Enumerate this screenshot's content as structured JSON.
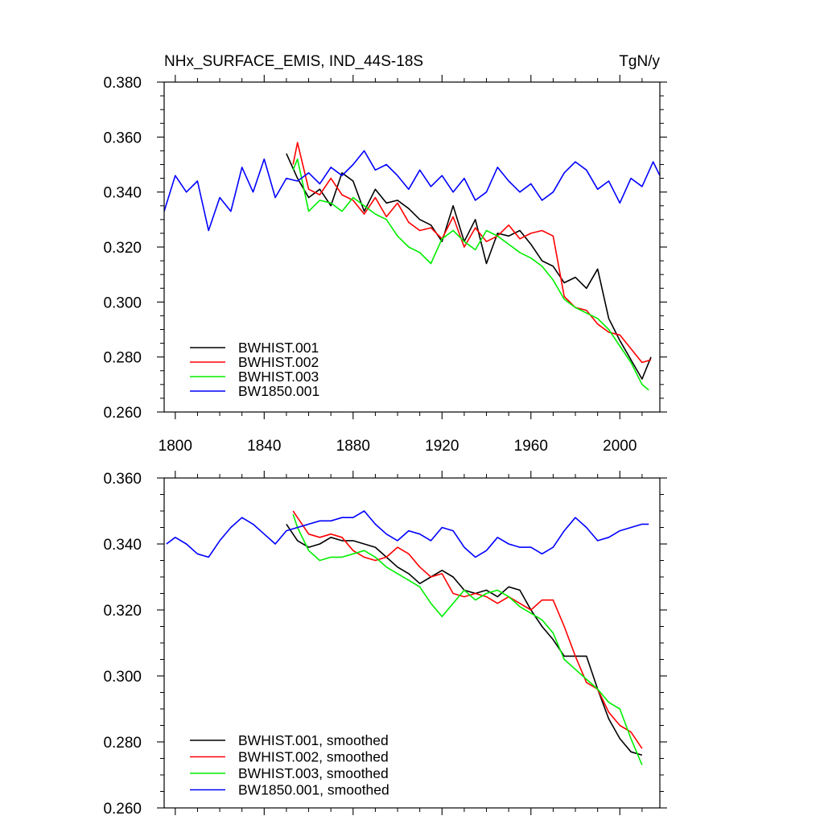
{
  "chart_data": [
    {
      "type": "line",
      "title": "NHx_SURFACE_EMIS, IND_44S-18S",
      "units": "TgN/y",
      "xlim": [
        1795,
        2018
      ],
      "ylim": [
        0.26,
        0.38
      ],
      "xticks": [
        1800,
        1840,
        1880,
        1920,
        1960,
        2000
      ],
      "yticks": [
        0.26,
        0.28,
        0.3,
        0.32,
        0.34,
        0.36,
        0.38
      ],
      "ytick_labels": [
        "0.260",
        "0.280",
        "0.300",
        "0.320",
        "0.340",
        "0.360",
        "0.380"
      ],
      "legend_position": "bottom-left",
      "series": [
        {
          "name": "BWHIST.001",
          "color": "#000000",
          "x": [
            1850,
            1855,
            1860,
            1865,
            1870,
            1875,
            1880,
            1885,
            1890,
            1895,
            1900,
            1905,
            1910,
            1915,
            1920,
            1925,
            1930,
            1935,
            1940,
            1945,
            1950,
            1955,
            1960,
            1965,
            1970,
            1975,
            1980,
            1985,
            1990,
            1995,
            2000,
            2005,
            2010,
            2014
          ],
          "y": [
            0.354,
            0.345,
            0.338,
            0.341,
            0.335,
            0.347,
            0.344,
            0.333,
            0.341,
            0.336,
            0.337,
            0.334,
            0.33,
            0.328,
            0.322,
            0.335,
            0.322,
            0.33,
            0.314,
            0.325,
            0.324,
            0.326,
            0.321,
            0.315,
            0.313,
            0.307,
            0.309,
            0.305,
            0.312,
            0.294,
            0.286,
            0.279,
            0.272,
            0.28
          ]
        },
        {
          "name": "BWHIST.002",
          "color": "#ff0000",
          "x": [
            1853,
            1855,
            1860,
            1865,
            1870,
            1875,
            1880,
            1885,
            1890,
            1895,
            1900,
            1905,
            1910,
            1915,
            1920,
            1925,
            1930,
            1935,
            1940,
            1945,
            1950,
            1955,
            1960,
            1965,
            1970,
            1975,
            1980,
            1985,
            1990,
            1995,
            2000,
            2005,
            2010,
            2014
          ],
          "y": [
            0.35,
            0.358,
            0.341,
            0.339,
            0.345,
            0.339,
            0.337,
            0.332,
            0.338,
            0.331,
            0.336,
            0.329,
            0.326,
            0.327,
            0.323,
            0.331,
            0.32,
            0.327,
            0.322,
            0.324,
            0.328,
            0.323,
            0.325,
            0.326,
            0.324,
            0.302,
            0.298,
            0.297,
            0.292,
            0.289,
            0.288,
            0.283,
            0.278,
            0.279
          ]
        },
        {
          "name": "BWHIST.003",
          "color": "#00ee00",
          "x": [
            1853,
            1855,
            1860,
            1865,
            1870,
            1875,
            1880,
            1885,
            1890,
            1895,
            1900,
            1905,
            1910,
            1915,
            1920,
            1925,
            1930,
            1935,
            1940,
            1945,
            1950,
            1955,
            1960,
            1965,
            1970,
            1975,
            1980,
            1985,
            1990,
            1995,
            2000,
            2005,
            2010,
            2013
          ],
          "y": [
            0.348,
            0.352,
            0.333,
            0.337,
            0.336,
            0.333,
            0.338,
            0.335,
            0.332,
            0.33,
            0.324,
            0.32,
            0.318,
            0.314,
            0.323,
            0.326,
            0.322,
            0.319,
            0.326,
            0.324,
            0.321,
            0.318,
            0.316,
            0.313,
            0.308,
            0.301,
            0.298,
            0.296,
            0.294,
            0.29,
            0.284,
            0.278,
            0.27,
            0.268
          ]
        },
        {
          "name": "BW1850.001",
          "color": "#0000ff",
          "x": [
            1795,
            1800,
            1805,
            1810,
            1815,
            1820,
            1825,
            1830,
            1835,
            1840,
            1845,
            1850,
            1855,
            1860,
            1865,
            1870,
            1875,
            1880,
            1885,
            1890,
            1895,
            1900,
            1905,
            1910,
            1915,
            1920,
            1925,
            1930,
            1935,
            1940,
            1945,
            1950,
            1955,
            1960,
            1965,
            1970,
            1975,
            1980,
            1985,
            1990,
            1995,
            2000,
            2005,
            2010,
            2015,
            2018
          ],
          "y": [
            0.333,
            0.346,
            0.34,
            0.344,
            0.326,
            0.338,
            0.333,
            0.349,
            0.34,
            0.352,
            0.338,
            0.345,
            0.344,
            0.347,
            0.343,
            0.349,
            0.346,
            0.35,
            0.355,
            0.348,
            0.35,
            0.346,
            0.341,
            0.348,
            0.342,
            0.346,
            0.34,
            0.345,
            0.337,
            0.34,
            0.349,
            0.344,
            0.34,
            0.343,
            0.337,
            0.34,
            0.347,
            0.351,
            0.348,
            0.341,
            0.344,
            0.336,
            0.345,
            0.342,
            0.351,
            0.346
          ]
        }
      ]
    },
    {
      "type": "line",
      "xlim": [
        1795,
        2018
      ],
      "ylim": [
        0.26,
        0.36
      ],
      "xticks": [
        1800,
        1840,
        1880,
        1920,
        1960,
        2000
      ],
      "yticks": [
        0.26,
        0.28,
        0.3,
        0.32,
        0.34,
        0.36
      ],
      "ytick_labels": [
        "0.260",
        "0.280",
        "0.300",
        "0.320",
        "0.340",
        "0.360"
      ],
      "legend_position": "bottom-left",
      "series": [
        {
          "name": "BWHIST.001, smoothed",
          "color": "#000000",
          "x": [
            1850,
            1855,
            1860,
            1865,
            1870,
            1875,
            1880,
            1885,
            1890,
            1895,
            1900,
            1905,
            1910,
            1915,
            1920,
            1925,
            1930,
            1935,
            1940,
            1945,
            1950,
            1955,
            1960,
            1965,
            1970,
            1975,
            1980,
            1985,
            1990,
            1995,
            2000,
            2005,
            2010
          ],
          "y": [
            0.346,
            0.341,
            0.339,
            0.34,
            0.342,
            0.341,
            0.341,
            0.34,
            0.339,
            0.336,
            0.333,
            0.331,
            0.328,
            0.33,
            0.332,
            0.33,
            0.326,
            0.325,
            0.326,
            0.324,
            0.327,
            0.326,
            0.32,
            0.315,
            0.311,
            0.306,
            0.306,
            0.306,
            0.296,
            0.287,
            0.281,
            0.277,
            0.276
          ]
        },
        {
          "name": "BWHIST.002, smoothed",
          "color": "#ff0000",
          "x": [
            1853,
            1855,
            1860,
            1865,
            1870,
            1875,
            1880,
            1885,
            1890,
            1895,
            1900,
            1905,
            1910,
            1915,
            1920,
            1925,
            1930,
            1935,
            1940,
            1945,
            1950,
            1955,
            1960,
            1965,
            1970,
            1975,
            1980,
            1985,
            1990,
            1995,
            2000,
            2005,
            2010
          ],
          "y": [
            0.35,
            0.348,
            0.343,
            0.342,
            0.343,
            0.342,
            0.338,
            0.336,
            0.335,
            0.336,
            0.339,
            0.337,
            0.333,
            0.33,
            0.331,
            0.325,
            0.324,
            0.325,
            0.324,
            0.322,
            0.324,
            0.322,
            0.32,
            0.323,
            0.323,
            0.315,
            0.306,
            0.298,
            0.296,
            0.289,
            0.285,
            0.283,
            0.278
          ]
        },
        {
          "name": "BWHIST.003, smoothed",
          "color": "#00ee00",
          "x": [
            1853,
            1855,
            1860,
            1865,
            1870,
            1875,
            1880,
            1885,
            1890,
            1895,
            1900,
            1905,
            1910,
            1915,
            1920,
            1925,
            1930,
            1935,
            1940,
            1945,
            1950,
            1955,
            1960,
            1965,
            1970,
            1975,
            1980,
            1985,
            1990,
            1995,
            2000,
            2005,
            2010
          ],
          "y": [
            0.349,
            0.345,
            0.338,
            0.335,
            0.336,
            0.336,
            0.337,
            0.338,
            0.336,
            0.333,
            0.331,
            0.329,
            0.327,
            0.322,
            0.318,
            0.322,
            0.326,
            0.323,
            0.325,
            0.326,
            0.324,
            0.321,
            0.319,
            0.317,
            0.313,
            0.305,
            0.302,
            0.299,
            0.296,
            0.292,
            0.29,
            0.281,
            0.273
          ]
        },
        {
          "name": "BW1850.001, smoothed",
          "color": "#0000ff",
          "x": [
            1796,
            1800,
            1805,
            1810,
            1815,
            1820,
            1825,
            1830,
            1835,
            1840,
            1845,
            1850,
            1855,
            1860,
            1865,
            1870,
            1875,
            1880,
            1885,
            1890,
            1895,
            1900,
            1905,
            1910,
            1915,
            1920,
            1925,
            1930,
            1935,
            1940,
            1945,
            1950,
            1955,
            1960,
            1965,
            1970,
            1975,
            1980,
            1985,
            1990,
            1995,
            2000,
            2005,
            2010,
            2013
          ],
          "y": [
            0.34,
            0.342,
            0.34,
            0.337,
            0.336,
            0.341,
            0.345,
            0.348,
            0.346,
            0.343,
            0.34,
            0.344,
            0.345,
            0.346,
            0.347,
            0.347,
            0.348,
            0.348,
            0.35,
            0.346,
            0.343,
            0.341,
            0.344,
            0.343,
            0.341,
            0.345,
            0.344,
            0.339,
            0.336,
            0.338,
            0.342,
            0.34,
            0.339,
            0.339,
            0.337,
            0.339,
            0.344,
            0.348,
            0.345,
            0.341,
            0.342,
            0.344,
            0.345,
            0.346,
            0.346
          ]
        }
      ]
    }
  ]
}
